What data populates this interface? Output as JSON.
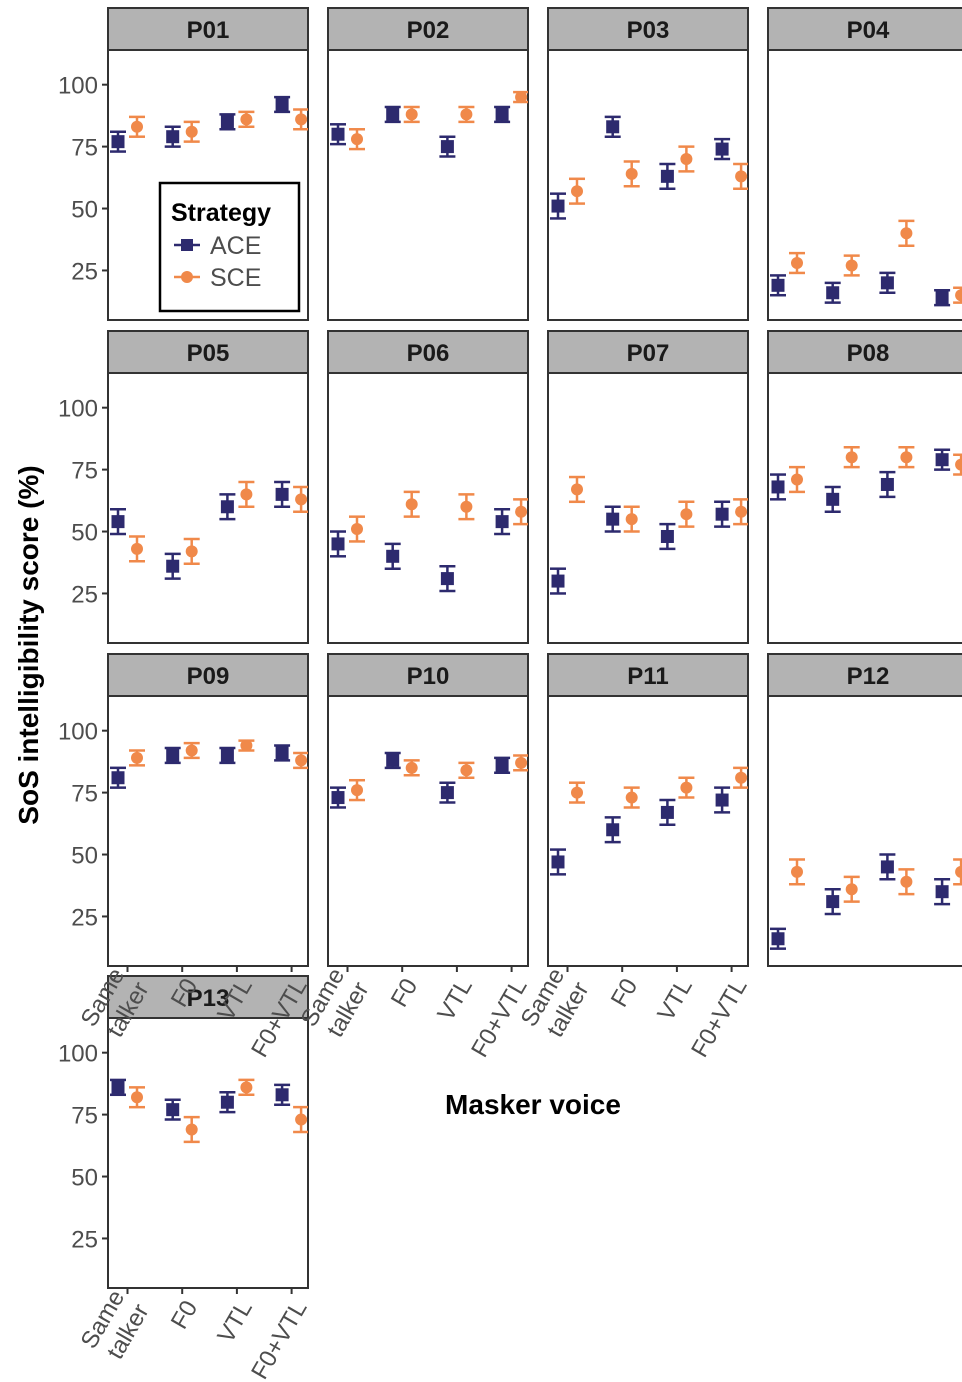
{
  "chart_data": {
    "type": "scatter",
    "ylabel": "SoS intelligibility score (%)",
    "xlabel": "Masker voice",
    "categories": [
      "Same talker",
      "F0",
      "VTL",
      "F0+VTL"
    ],
    "category_lines": [
      [
        "Same",
        "talker"
      ],
      [
        "F0"
      ],
      [
        "VTL"
      ],
      [
        "F0+VTL"
      ]
    ],
    "ylim": [
      5,
      114
    ],
    "yticks": [
      25,
      50,
      75,
      100
    ],
    "grid": false,
    "legend": {
      "title": "Strategy",
      "placement": "inside panel P01, bottom-center"
    },
    "series": [
      {
        "name": "ACE",
        "color": "#2d2a6e",
        "marker": "square"
      },
      {
        "name": "SCE",
        "color": "#f0894a",
        "marker": "circle"
      }
    ],
    "panels": [
      {
        "title": "P01",
        "ACE": [
          77,
          79,
          85,
          92
        ],
        "SCE": [
          83,
          81,
          86,
          86
        ],
        "ACE_err": [
          4,
          4,
          3,
          3
        ],
        "SCE_err": [
          4,
          4,
          3,
          4
        ]
      },
      {
        "title": "P02",
        "ACE": [
          80,
          88,
          75,
          88
        ],
        "SCE": [
          78,
          88,
          88,
          95
        ],
        "ACE_err": [
          4,
          3,
          4,
          3
        ],
        "SCE_err": [
          4,
          3,
          3,
          2
        ]
      },
      {
        "title": "P03",
        "ACE": [
          51,
          83,
          63,
          74
        ],
        "SCE": [
          57,
          64,
          70,
          63
        ],
        "ACE_err": [
          5,
          4,
          5,
          4
        ],
        "SCE_err": [
          5,
          5,
          5,
          5
        ]
      },
      {
        "title": "P04",
        "ACE": [
          19,
          16,
          20,
          14
        ],
        "SCE": [
          28,
          27,
          40,
          15
        ],
        "ACE_err": [
          4,
          4,
          4,
          3
        ],
        "SCE_err": [
          4,
          4,
          5,
          3
        ]
      },
      {
        "title": "P05",
        "ACE": [
          54,
          36,
          60,
          65
        ],
        "SCE": [
          43,
          42,
          65,
          63
        ],
        "ACE_err": [
          5,
          5,
          5,
          5
        ],
        "SCE_err": [
          5,
          5,
          5,
          5
        ]
      },
      {
        "title": "P06",
        "ACE": [
          45,
          40,
          31,
          54
        ],
        "SCE": [
          51,
          61,
          60,
          58
        ],
        "ACE_err": [
          5,
          5,
          5,
          5
        ],
        "SCE_err": [
          5,
          5,
          5,
          5
        ]
      },
      {
        "title": "P07",
        "ACE": [
          30,
          55,
          48,
          57
        ],
        "SCE": [
          67,
          55,
          57,
          58
        ],
        "ACE_err": [
          5,
          5,
          5,
          5
        ],
        "SCE_err": [
          5,
          5,
          5,
          5
        ]
      },
      {
        "title": "P08",
        "ACE": [
          68,
          63,
          69,
          79
        ],
        "SCE": [
          71,
          80,
          80,
          77
        ],
        "ACE_err": [
          5,
          5,
          5,
          4
        ],
        "SCE_err": [
          5,
          4,
          4,
          4
        ]
      },
      {
        "title": "P09",
        "ACE": [
          81,
          90,
          90,
          91
        ],
        "SCE": [
          89,
          92,
          94,
          88
        ],
        "ACE_err": [
          4,
          3,
          3,
          3
        ],
        "SCE_err": [
          3,
          3,
          2,
          3
        ]
      },
      {
        "title": "P10",
        "ACE": [
          73,
          88,
          75,
          86
        ],
        "SCE": [
          76,
          85,
          84,
          87
        ],
        "ACE_err": [
          4,
          3,
          4,
          3
        ],
        "SCE_err": [
          4,
          3,
          3,
          3
        ]
      },
      {
        "title": "P11",
        "ACE": [
          47,
          60,
          67,
          72
        ],
        "SCE": [
          75,
          73,
          77,
          81
        ],
        "ACE_err": [
          5,
          5,
          5,
          5
        ],
        "SCE_err": [
          4,
          4,
          4,
          4
        ]
      },
      {
        "title": "P12",
        "ACE": [
          16,
          31,
          45,
          35
        ],
        "SCE": [
          43,
          36,
          39,
          43
        ],
        "ACE_err": [
          4,
          5,
          5,
          5
        ],
        "SCE_err": [
          5,
          5,
          5,
          5
        ]
      },
      {
        "title": "P13",
        "ACE": [
          86,
          77,
          80,
          83
        ],
        "SCE": [
          82,
          69,
          86,
          73
        ],
        "ACE_err": [
          3,
          4,
          4,
          4
        ],
        "SCE_err": [
          4,
          5,
          3,
          5
        ]
      }
    ]
  }
}
